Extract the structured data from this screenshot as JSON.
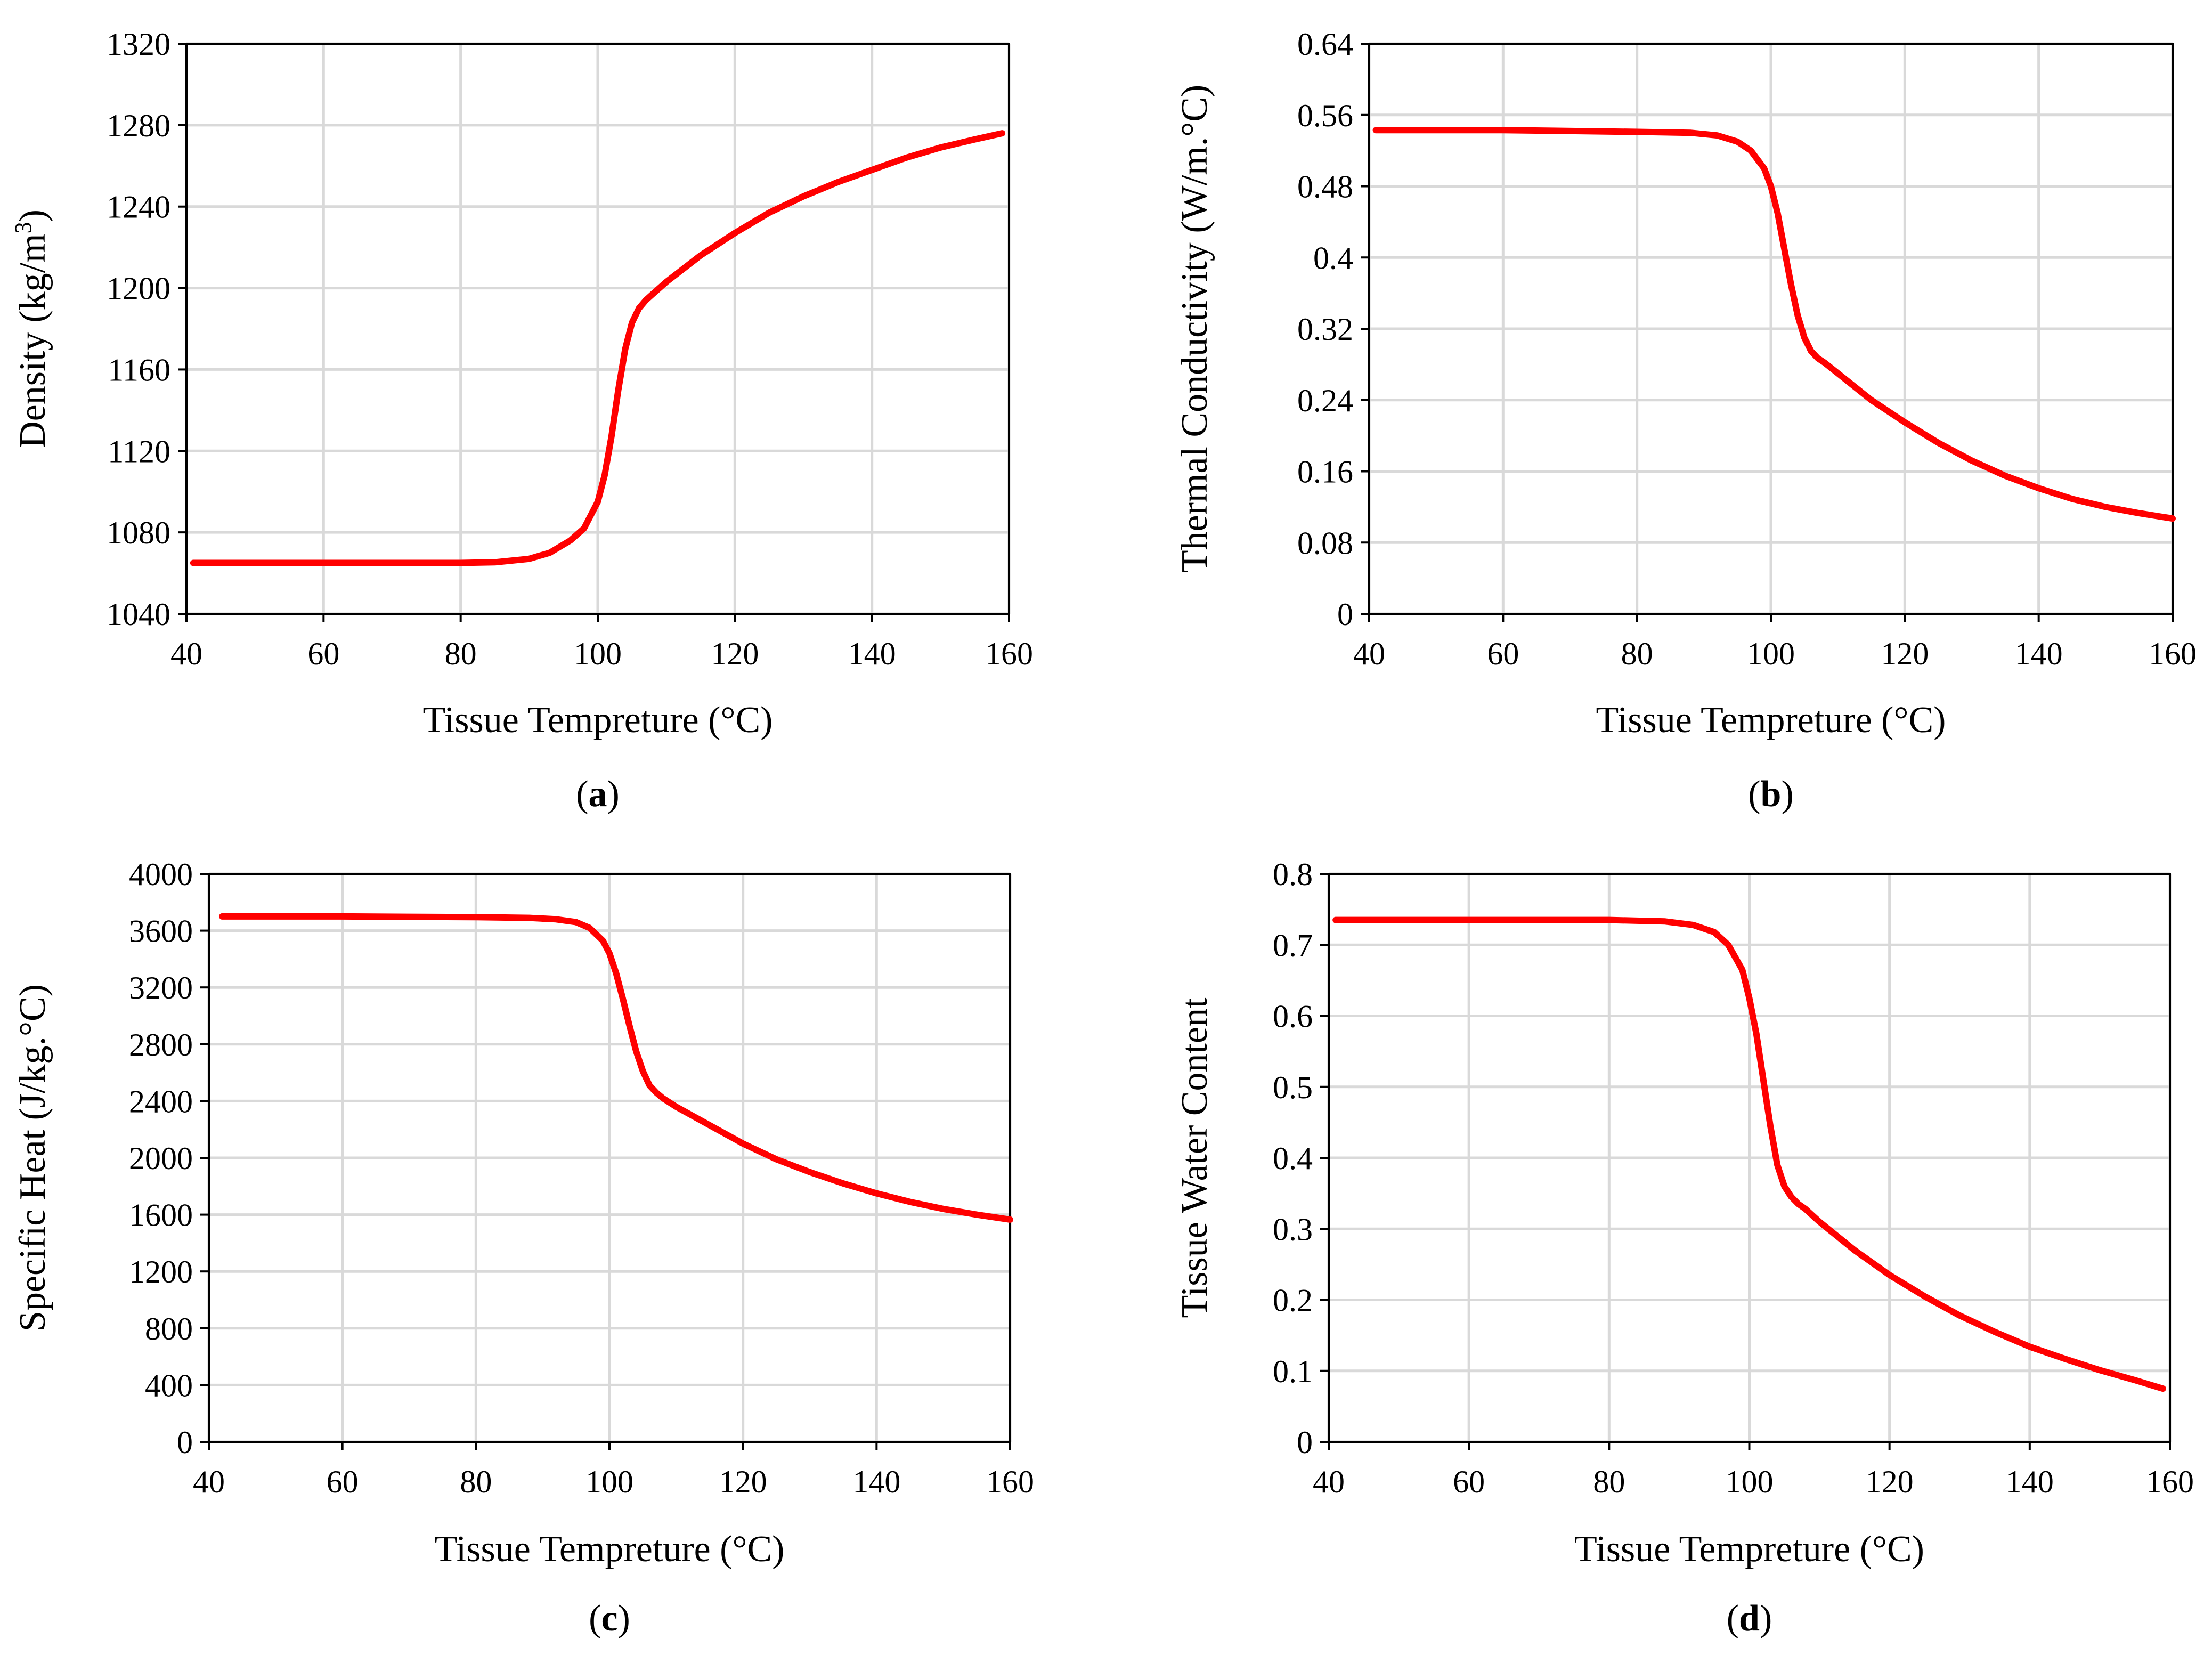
{
  "figure": {
    "xlabel": "Tissue Tempreture (°C)",
    "line_color": "#ff0000",
    "grid_color": "#d9d9d9"
  },
  "chart_data": [
    {
      "type": "line",
      "panel_label": "a",
      "title": "",
      "xlabel": "Tissue Tempreture (°C)",
      "ylabel": "Density (kg/m3)",
      "ylabel_main": "Density (kg/m",
      "ylabel_sup": "3",
      "ylabel_close": ")",
      "xlim": [
        40,
        160
      ],
      "ylim": [
        1040,
        1320
      ],
      "xticks": [
        "40",
        "60",
        "80",
        "100",
        "120",
        "140",
        "160"
      ],
      "yticks": [
        "1040",
        "1080",
        "1120",
        "1160",
        "1200",
        "1240",
        "1280",
        "1320"
      ],
      "grid": true,
      "series": [
        {
          "name": "Density",
          "x": [
            41,
            60,
            80,
            85,
            90,
            93,
            96,
            98,
            100,
            101,
            102,
            103,
            104,
            105,
            106,
            107,
            108,
            110,
            115,
            120,
            125,
            130,
            135,
            140,
            145,
            150,
            155,
            159
          ],
          "y": [
            1065,
            1065,
            1065,
            1065.3,
            1067,
            1070,
            1076,
            1082,
            1095,
            1108,
            1127,
            1150,
            1170,
            1183,
            1190,
            1194,
            1197,
            1203,
            1216,
            1227,
            1237,
            1245,
            1252,
            1258,
            1264,
            1269,
            1273,
            1276
          ]
        }
      ]
    },
    {
      "type": "line",
      "panel_label": "b",
      "title": "",
      "xlabel": "Tissue Tempreture (°C)",
      "ylabel": "Thermal Conductivity (W/m.°C)",
      "xlim": [
        40,
        160
      ],
      "ylim": [
        0,
        0.64
      ],
      "xticks": [
        "40",
        "60",
        "80",
        "100",
        "120",
        "140",
        "160"
      ],
      "yticks": [
        "0",
        "0.08",
        "0.16",
        "0.24",
        "0.32",
        "0.4",
        "0.48",
        "0.56",
        "0.64"
      ],
      "grid": true,
      "series": [
        {
          "name": "Thermal Conductivity",
          "x": [
            41,
            60,
            80,
            88,
            92,
            95,
            97,
            99,
            100,
            101,
            102,
            103,
            104,
            105,
            106,
            107,
            108,
            110,
            115,
            120,
            125,
            130,
            135,
            140,
            145,
            150,
            155,
            160
          ],
          "y": [
            0.543,
            0.543,
            0.541,
            0.54,
            0.537,
            0.53,
            0.52,
            0.5,
            0.48,
            0.45,
            0.41,
            0.37,
            0.335,
            0.31,
            0.295,
            0.287,
            0.282,
            0.27,
            0.24,
            0.215,
            0.192,
            0.172,
            0.155,
            0.141,
            0.129,
            0.12,
            0.113,
            0.107
          ]
        }
      ]
    },
    {
      "type": "line",
      "panel_label": "c",
      "title": "",
      "xlabel": "Tissue Tempreture (°C)",
      "ylabel": "Specific Heat (J/kg.°C)",
      "xlim": [
        40,
        160
      ],
      "ylim": [
        0,
        4000
      ],
      "xticks": [
        "40",
        "60",
        "80",
        "100",
        "120",
        "140",
        "160"
      ],
      "yticks": [
        "0",
        "400",
        "800",
        "1200",
        "1600",
        "2000",
        "2400",
        "2800",
        "3200",
        "3600",
        "4000"
      ],
      "grid": true,
      "series": [
        {
          "name": "Specific Heat",
          "x": [
            42,
            60,
            80,
            88,
            92,
            95,
            97,
            99,
            100,
            101,
            102,
            103,
            104,
            105,
            106,
            107,
            108,
            110,
            115,
            120,
            125,
            130,
            135,
            140,
            145,
            150,
            155,
            160
          ],
          "y": [
            3700,
            3700,
            3695,
            3690,
            3680,
            3660,
            3620,
            3530,
            3440,
            3300,
            3120,
            2930,
            2750,
            2610,
            2510,
            2460,
            2420,
            2360,
            2230,
            2100,
            1990,
            1900,
            1820,
            1750,
            1690,
            1640,
            1600,
            1565
          ]
        }
      ]
    },
    {
      "type": "line",
      "panel_label": "d",
      "title": "",
      "xlabel": "Tissue Tempreture (°C)",
      "ylabel": "Tissue Water Content",
      "xlim": [
        40,
        160
      ],
      "ylim": [
        0,
        0.8
      ],
      "xticks": [
        "40",
        "60",
        "80",
        "100",
        "120",
        "140",
        "160"
      ],
      "yticks": [
        "0",
        "0.1",
        "0.2",
        "0.3",
        "0.4",
        "0.5",
        "0.6",
        "0.7",
        "0.8"
      ],
      "grid": true,
      "series": [
        {
          "name": "Tissue Water Content",
          "x": [
            41,
            60,
            80,
            88,
            92,
            95,
            97,
            99,
            100,
            101,
            102,
            103,
            104,
            105,
            106,
            107,
            108,
            110,
            115,
            120,
            125,
            130,
            135,
            140,
            145,
            150,
            155,
            159
          ],
          "y": [
            0.735,
            0.735,
            0.735,
            0.733,
            0.728,
            0.718,
            0.7,
            0.665,
            0.625,
            0.575,
            0.51,
            0.445,
            0.39,
            0.36,
            0.345,
            0.335,
            0.328,
            0.31,
            0.27,
            0.235,
            0.205,
            0.178,
            0.155,
            0.134,
            0.117,
            0.101,
            0.087,
            0.075
          ]
        }
      ]
    }
  ]
}
